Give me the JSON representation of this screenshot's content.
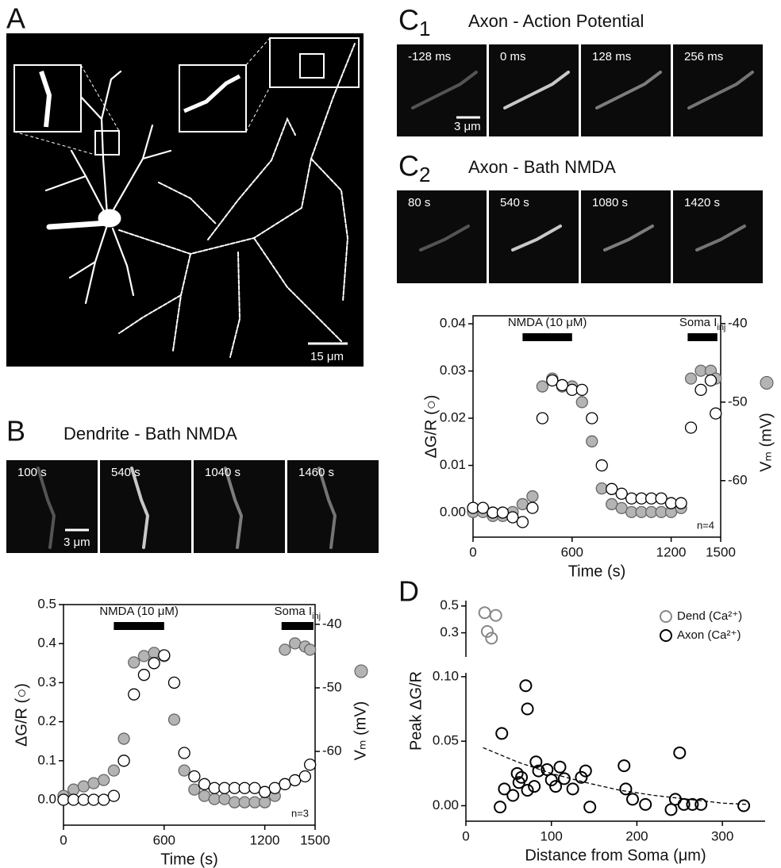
{
  "panels": {
    "a": "A",
    "b": "B",
    "c1": "C",
    "c1_sub": "1",
    "c2": "C",
    "c2_sub": "2",
    "d": "D"
  },
  "panel_a": {
    "scale_bar": "15 μm"
  },
  "panel_b": {
    "title": "Dendrite - Bath NMDA",
    "frames": [
      "100 s",
      "540 s",
      "1040 s",
      "1460 s"
    ],
    "scale_bar": "3 μm"
  },
  "panel_c1": {
    "title": "Axon - Action Potential",
    "frames": [
      "-128 ms",
      "0 ms",
      "128 ms",
      "256 ms"
    ],
    "scale_bar": "3 μm"
  },
  "panel_c2": {
    "title": "Axon - Bath NMDA",
    "frames": [
      "80 s",
      "540 s",
      "1080 s",
      "1420 s"
    ]
  },
  "chart_data": [
    {
      "type": "scatter",
      "x_label": "Time (s)",
      "y_label": "ΔG/R  (○)",
      "y2_label": "Vₘ (mV)",
      "x": [
        0,
        60,
        120,
        180,
        240,
        300,
        360,
        420,
        480,
        540,
        600,
        660,
        720,
        780,
        840,
        900,
        960,
        1020,
        1080,
        1140,
        1200,
        1260,
        1320,
        1380,
        1440,
        1470
      ],
      "xlim": [
        0,
        1500
      ],
      "xticks": [
        0,
        600,
        1200,
        1500
      ],
      "ylim": [
        -0.065,
        0.5
      ],
      "yticks": [
        {
          "value": 0,
          "label": "0.0"
        },
        0.1,
        0.2,
        0.3,
        0.4,
        0.5
      ],
      "y2lim": [
        -71.6,
        -36.9
      ],
      "y2ticks": [
        -40,
        -50,
        -60
      ],
      "series": [
        {
          "color": "#b4b4b4",
          "axis": "y2",
          "values": [
            -67,
            -66,
            -65.5,
            -65,
            -64.5,
            -63,
            -58,
            -46,
            -45,
            -44.5,
            -45,
            -55,
            -63,
            -66,
            -67,
            -67.5,
            -67.5,
            -68,
            -68,
            -68,
            -68,
            -67,
            -44,
            -43,
            -43.5,
            -44
          ]
        },
        {
          "color": "#ffffff",
          "values": [
            0,
            0,
            0,
            0,
            0,
            0.01,
            0.1,
            0.27,
            0.32,
            0.35,
            0.37,
            0.3,
            0.12,
            0.06,
            0.04,
            0.03,
            0.03,
            0.03,
            0.03,
            0.03,
            0.02,
            0.03,
            0.04,
            0.05,
            0.06,
            0.09
          ]
        }
      ],
      "bars": [
        {
          "label": "NMDA (10 μM)",
          "start": 300,
          "end": 600
        },
        {
          "label": "Soma I",
          "label_sub": "inj",
          "start": 1300,
          "end": 1490
        }
      ],
      "annotation": "n=3"
    },
    {
      "type": "scatter",
      "x_label": "Time (s)",
      "y_label": "ΔG/R  (○)",
      "y2_label": "Vₘ (mV)",
      "x": [
        0,
        60,
        120,
        180,
        240,
        300,
        360,
        420,
        480,
        540,
        600,
        660,
        720,
        780,
        840,
        900,
        960,
        1020,
        1080,
        1140,
        1200,
        1260,
        1320,
        1380,
        1440,
        1470
      ],
      "xlim": [
        0,
        1500
      ],
      "xticks": [
        0,
        600,
        1200,
        1500
      ],
      "ylim": [
        -0.0052,
        0.0417
      ],
      "yticks": [
        {
          "value": 0,
          "label": "0.00"
        },
        0.01,
        0.02,
        0.03,
        0.04
      ],
      "y2lim": [
        -67.2,
        -39
      ],
      "y2ticks": [
        -40,
        -50,
        -60
      ],
      "series": [
        {
          "color": "#b4b4b4",
          "axis": "y2",
          "values": [
            -64,
            -64,
            -64.5,
            -64.5,
            -64,
            -63,
            -62,
            -48,
            -47,
            -48,
            -48,
            -50,
            -55,
            -61,
            -63,
            -63.5,
            -64,
            -64,
            -64,
            -64,
            -64,
            -63.5,
            -47,
            -46,
            -46,
            -47
          ]
        },
        {
          "color": "#ffffff",
          "values": [
            0.001,
            0.001,
            0,
            0,
            -0.001,
            -0.002,
            0.001,
            0.02,
            0.028,
            0.027,
            0.026,
            0.026,
            0.02,
            0.01,
            0.005,
            0.004,
            0.003,
            0.003,
            0.003,
            0.003,
            0.002,
            0.002,
            0.018,
            0.026,
            0.028,
            0.021
          ]
        }
      ],
      "bars": [
        {
          "label": "NMDA (10 μM)",
          "start": 300,
          "end": 600
        },
        {
          "label": "Soma I",
          "label_sub": "inj",
          "start": 1300,
          "end": 1480
        }
      ],
      "annotation": "n=4"
    },
    {
      "type": "broken-scatter",
      "x_label": "Distance from Soma (μm)",
      "y_label": "Peak ΔG/R",
      "xlim": [
        0,
        350
      ],
      "xticks": [
        0,
        100,
        200,
        300
      ],
      "ylim": [
        -0.012,
        0.103
      ],
      "yticks": [
        {
          "value": 0,
          "label": "0.00"
        },
        0.05,
        {
          "value": 0.1,
          "label": "0.10"
        }
      ],
      "ylim_upper": [
        0.12,
        0.54
      ],
      "yticks_upper": [
        0.3,
        0.5
      ],
      "legend": "upper right",
      "series": [
        {
          "name": "Dend (Ca²⁺)",
          "color": "#888888",
          "x": [
            22,
            25,
            30,
            35
          ],
          "values": [
            0.45,
            0.31,
            0.26,
            0.43
          ]
        },
        {
          "name": "Axon (Ca²⁺)",
          "color": "#000000",
          "x": [
            40,
            42,
            45,
            55,
            60,
            62,
            65,
            70,
            72,
            72,
            80,
            82,
            85,
            95,
            100,
            105,
            110,
            115,
            125,
            135,
            140,
            145,
            185,
            187,
            195,
            210,
            240,
            245,
            250,
            255,
            265,
            275,
            325
          ],
          "values": [
            -0.001,
            0.056,
            0.013,
            0.008,
            0.025,
            0.018,
            0.022,
            0.093,
            0.075,
            0.012,
            0.015,
            0.034,
            0.027,
            0.028,
            0.02,
            0.015,
            0.03,
            0.021,
            0.013,
            0.022,
            0.027,
            -0.001,
            0.031,
            0.013,
            0.005,
            0.001,
            -0.003,
            0.005,
            0.041,
            0.001,
            0.001,
            0.001,
            0
          ]
        }
      ],
      "fit": {
        "x": [
          20,
          60,
          100,
          140,
          180,
          220,
          260,
          300,
          330
        ],
        "values": [
          0.045,
          0.034,
          0.025,
          0.018,
          0.012,
          0.008,
          0.005,
          0.002,
          0.001
        ]
      }
    }
  ]
}
